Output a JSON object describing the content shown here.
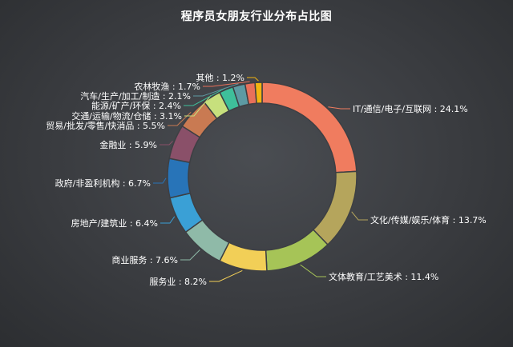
{
  "chart_data": {
    "type": "pie",
    "variant": "donut",
    "title": "程序员女朋友行业分布占比图",
    "legend": "none",
    "start_angle_deg": 0,
    "direction": "clockwise",
    "slices": [
      {
        "name": "IT/通信/电子/互联网",
        "value": 24.1,
        "label": "IT/通信/电子/互联网 : 24.1%",
        "color": "#f07c5f"
      },
      {
        "name": "文化/传媒/娱乐/体育",
        "value": 13.7,
        "label": "文化/传媒/娱乐/体育 : 13.7%",
        "color": "#b5a55c"
      },
      {
        "name": "文体教育/工艺美术",
        "value": 11.4,
        "label": "文体教育/工艺美术 : 11.4%",
        "color": "#a6c457"
      },
      {
        "name": "服务业",
        "value": 8.2,
        "label": "服务业 : 8.2%",
        "color": "#f2cf57"
      },
      {
        "name": "商业服务",
        "value": 7.6,
        "label": "商业服务 : 7.6%",
        "color": "#8fbaa8"
      },
      {
        "name": "房地产/建筑业",
        "value": 6.4,
        "label": "房地产/建筑业 : 6.4%",
        "color": "#3aa0d6"
      },
      {
        "name": "政府/非盈利机构",
        "value": 6.7,
        "label": "政府/非盈利机构 : 6.7%",
        "color": "#2874b8"
      },
      {
        "name": "金融业",
        "value": 5.9,
        "label": "金融业 : 5.9%",
        "color": "#8a5069"
      },
      {
        "name": "贸易/批发/零售/快消品",
        "value": 5.5,
        "label": "贸易/批发/零售/快消品 : 5.5%",
        "color": "#c97a52"
      },
      {
        "name": "交通/运输/物流/仓储",
        "value": 3.1,
        "label": "交通/运输/物流/仓储 : 3.1%",
        "color": "#c7e07d"
      },
      {
        "name": "能源/矿产/环保",
        "value": 2.4,
        "label": "能源/矿产/环保 : 2.4%",
        "color": "#3ebf9a"
      },
      {
        "name": "汽车/生产/加工/制造",
        "value": 2.1,
        "label": "汽车/生产/加工/制造 : 2.1%",
        "color": "#5d9aa3"
      },
      {
        "name": "农林牧渔",
        "value": 1.7,
        "label": "农林牧渔 : 1.7%",
        "color": "#e8705a"
      },
      {
        "name": "其他",
        "value": 1.2,
        "label": "其他 : 1.2%",
        "color": "#f2b410"
      }
    ]
  }
}
